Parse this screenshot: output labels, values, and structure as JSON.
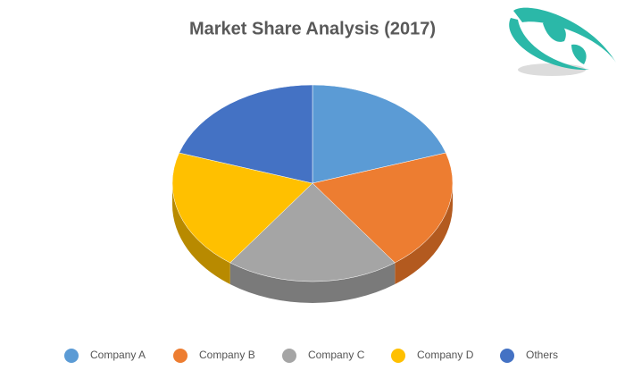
{
  "chart_data": {
    "type": "pie3d",
    "title": "Market Share Analysis (2017)",
    "categories": [
      "Company A",
      "Company B",
      "Company C",
      "Company D",
      "Others"
    ],
    "values": [
      20,
      20,
      20,
      20,
      20
    ],
    "colors": [
      "#5b9bd5",
      "#ed7d31",
      "#a5a5a5",
      "#ffc000",
      "#4472c4"
    ],
    "side_colors": [
      "#3f7bb0",
      "#b35a1f",
      "#7a7a7a",
      "#b88a00",
      "#2f5597"
    ],
    "legend": "bottom"
  }
}
